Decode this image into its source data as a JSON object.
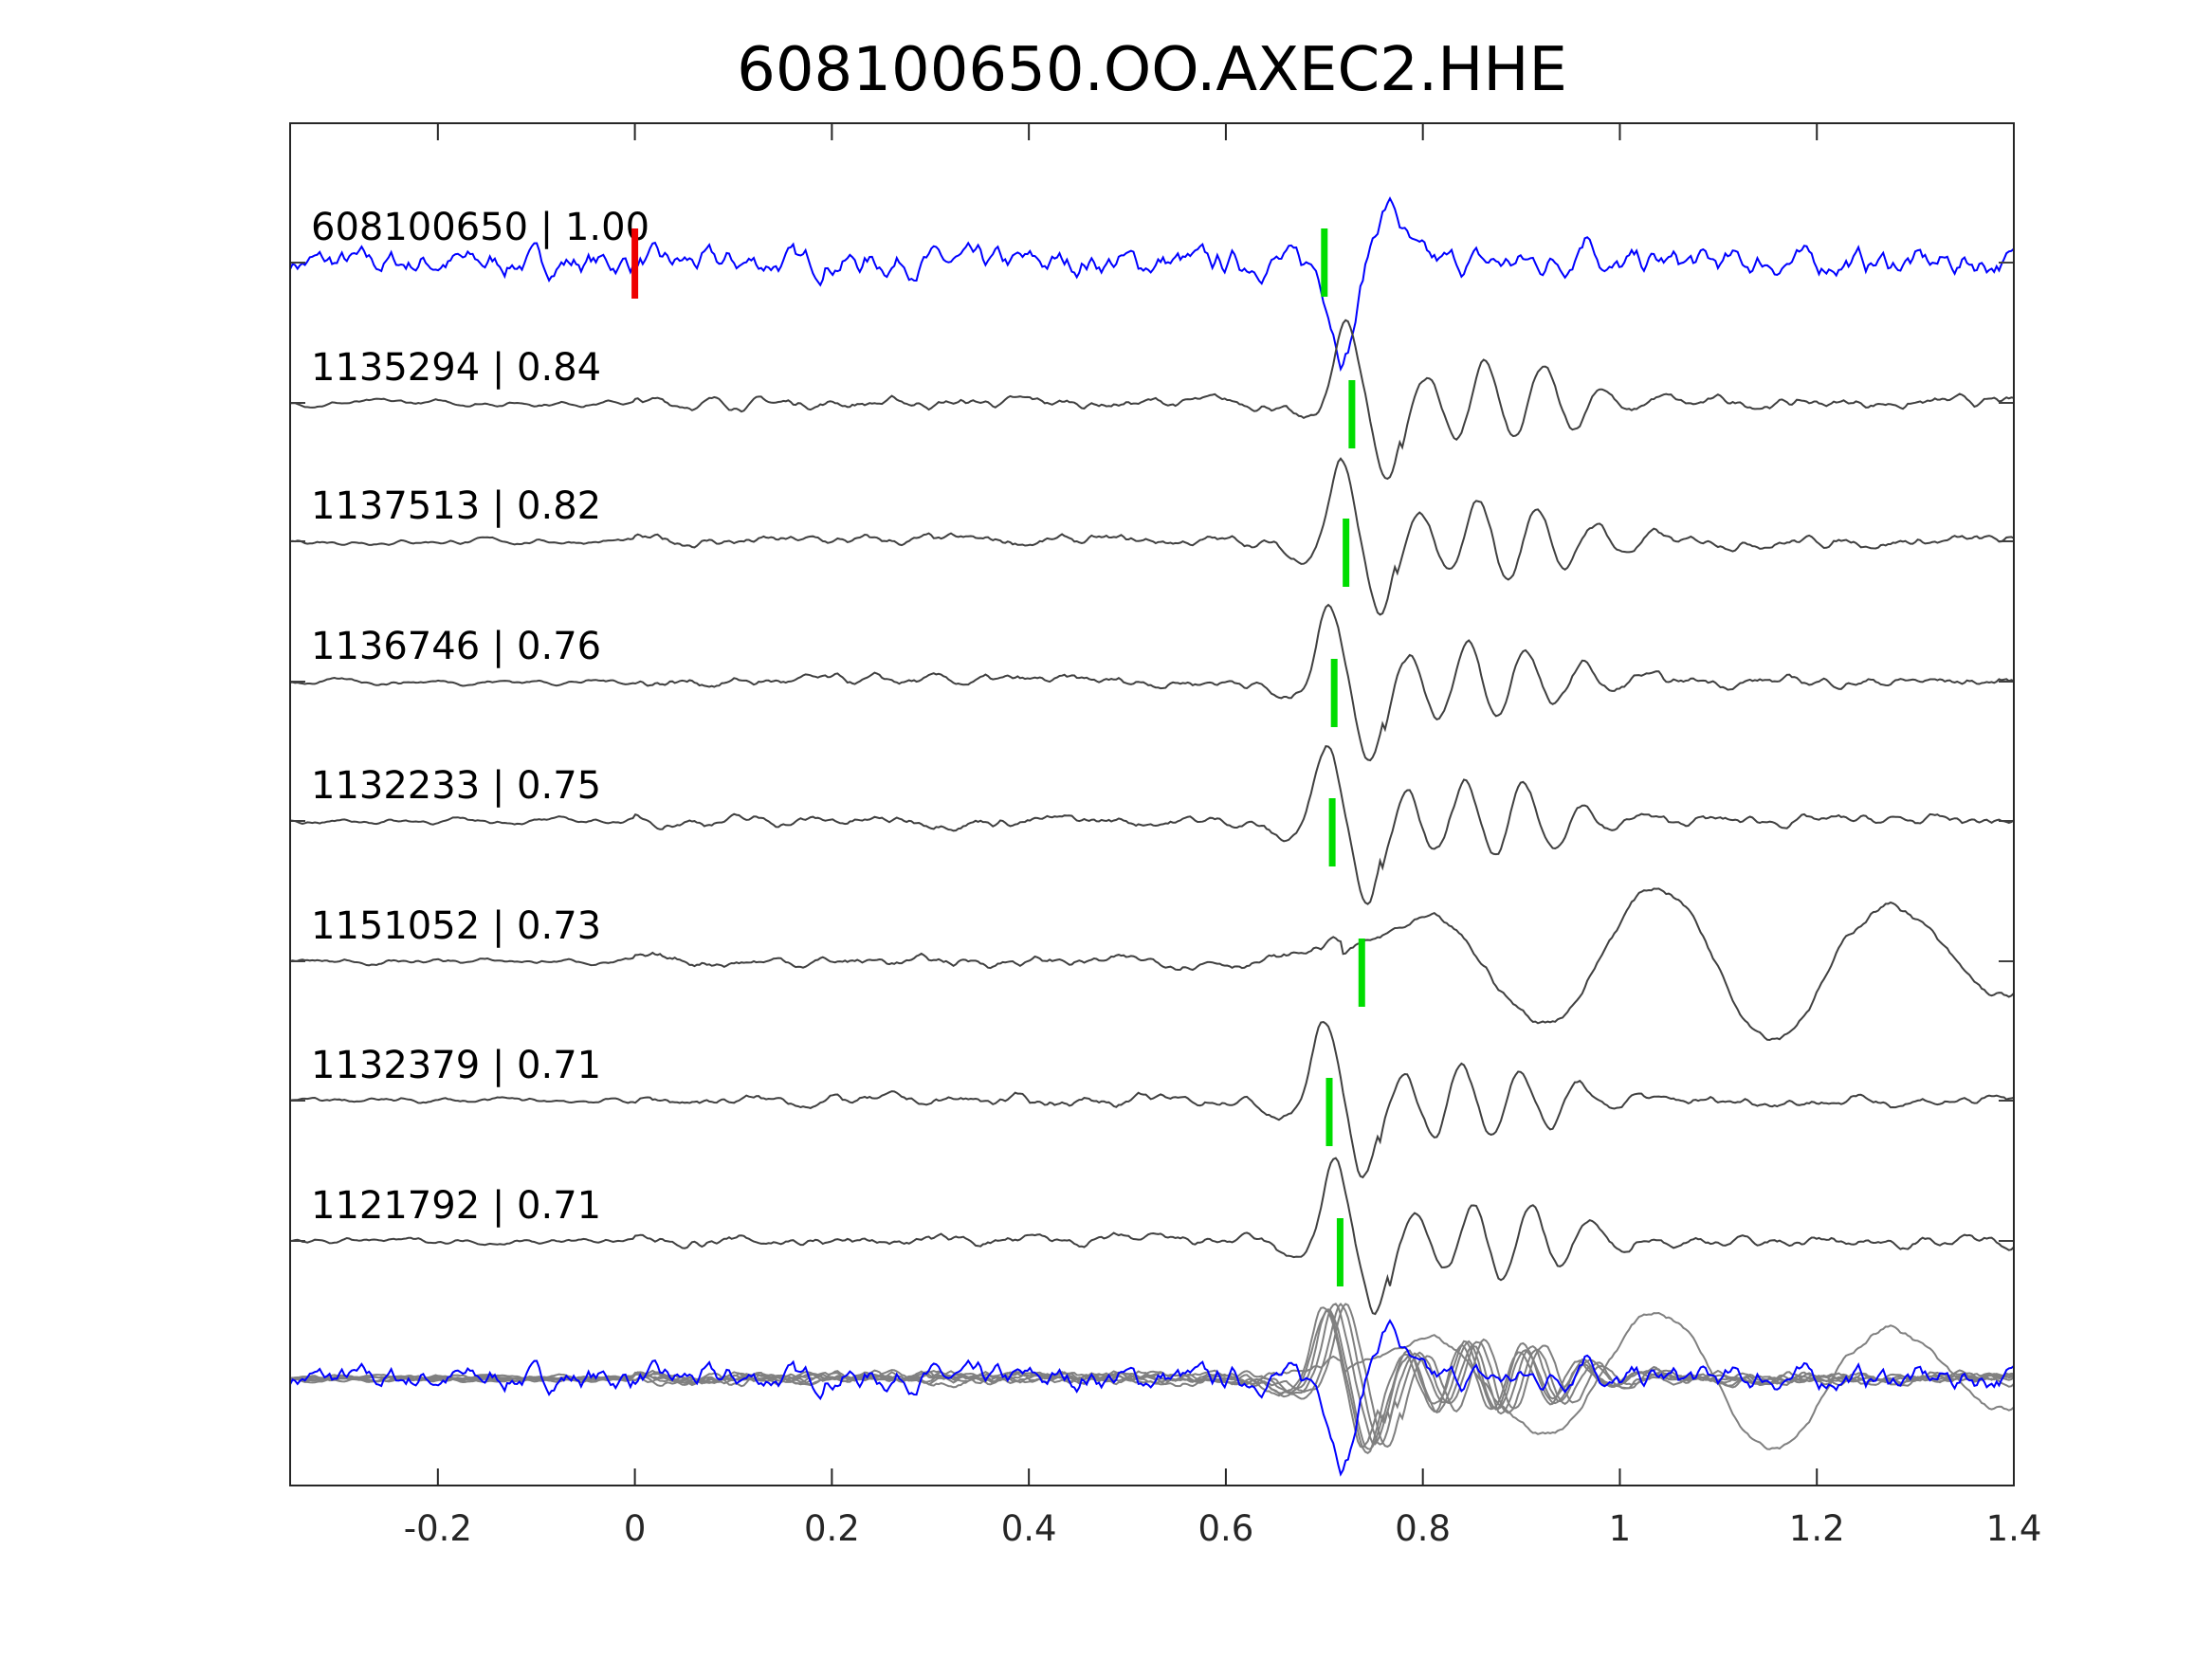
{
  "chart_data": {
    "type": "line",
    "title": "608100650.OO.AXEC2.HHE",
    "xlabel": "",
    "ylabel": "",
    "xlim": [
      -0.35,
      1.4
    ],
    "xticks": [
      -0.2,
      0,
      0.2,
      0.4,
      0.6,
      0.8,
      1,
      1.2,
      1.4
    ],
    "xtick_labels": [
      "-0.2",
      "0",
      "0.2",
      "0.4",
      "0.6",
      "0.8",
      "1",
      "1.2",
      "1.4"
    ],
    "grid": false,
    "reference_pick_time": 0,
    "colors": {
      "template": "#0000ff",
      "trace": "#404040",
      "stack": "#808080",
      "pick": "#00dd00",
      "ref_pick": "#ee0000"
    },
    "traces": [
      {
        "id": "608100650",
        "cc": "1.00",
        "label": "608100650 | 1.00",
        "pick": 0.7,
        "template": true
      },
      {
        "id": "1135294",
        "cc": "0.84",
        "label": "1135294 | 0.84",
        "pick": 0.728
      },
      {
        "id": "1137513",
        "cc": "0.82",
        "label": "1137513 | 0.82",
        "pick": 0.722
      },
      {
        "id": "1136746",
        "cc": "0.76",
        "label": "1136746 | 0.76",
        "pick": 0.71
      },
      {
        "id": "1132233",
        "cc": "0.75",
        "label": "1132233 | 0.75",
        "pick": 0.708
      },
      {
        "id": "1151052",
        "cc": "0.73",
        "label": "1151052 | 0.73",
        "pick": 0.738
      },
      {
        "id": "1132379",
        "cc": "0.71",
        "label": "1132379 | 0.71",
        "pick": 0.705
      },
      {
        "id": "1121792",
        "cc": "0.71",
        "label": "1121792 | 0.71",
        "pick": 0.716
      }
    ]
  }
}
